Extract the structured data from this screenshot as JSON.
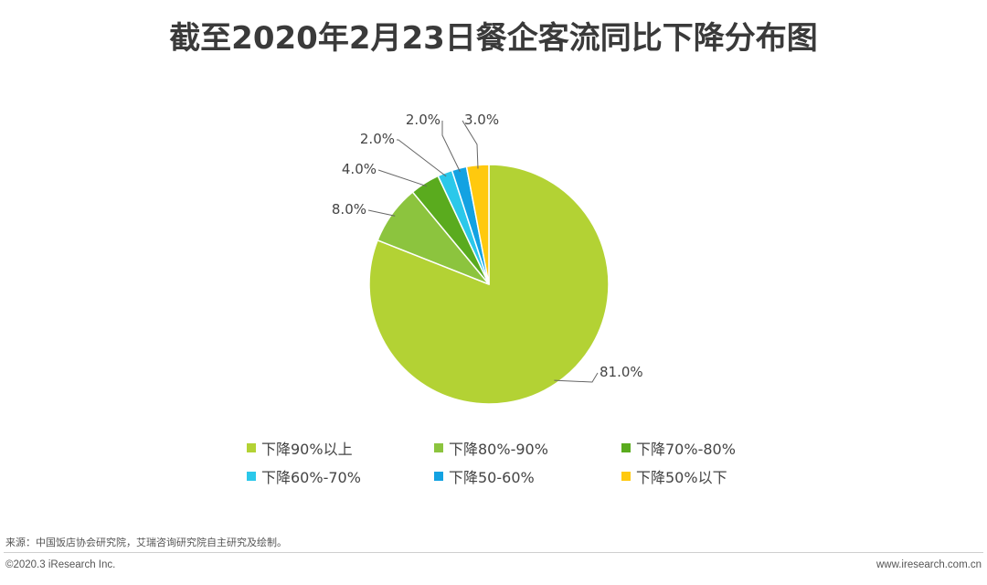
{
  "title": "截至2020年2月23日餐企客流同比下降分布图",
  "chart_data": {
    "type": "pie",
    "title": "截至2020年2月23日餐企客流同比下降分布图",
    "slices": [
      {
        "label": "下降90%以上",
        "value": 81.0,
        "display": "81.0%",
        "color": "#b3d234"
      },
      {
        "label": "下降80%-90%",
        "value": 8.0,
        "display": "8.0%",
        "color": "#8cc43e"
      },
      {
        "label": "下降70%-80%",
        "value": 4.0,
        "display": "4.0%",
        "color": "#5aab1e"
      },
      {
        "label": "下降60%-70%",
        "value": 2.0,
        "display": "2.0%",
        "color": "#2bc8ea"
      },
      {
        "label": "下降50-60%",
        "value": 2.0,
        "display": "2.0%",
        "color": "#13a2e2"
      },
      {
        "label": "下降50%以下",
        "value": 3.0,
        "display": "3.0%",
        "color": "#ffc90e"
      }
    ],
    "legend_placement": "bottom"
  },
  "footer": {
    "source": "来源：中国饭店协会研究院，艾瑞咨询研究院自主研究及绘制。",
    "copyright": "©2020.3 iResearch Inc.",
    "website": "www.iresearch.com.cn"
  }
}
